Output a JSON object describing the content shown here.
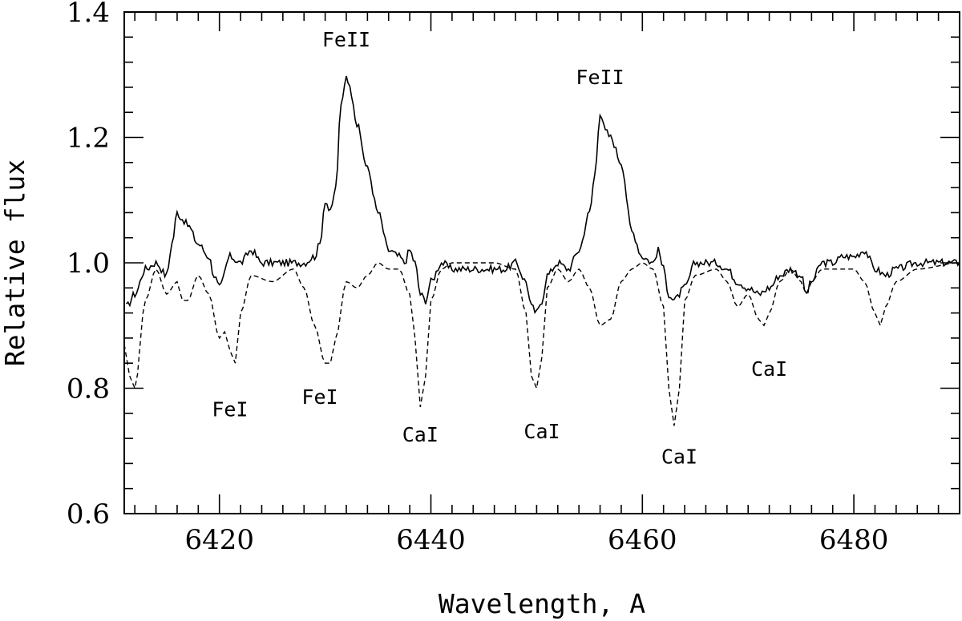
{
  "chart_data": {
    "type": "line",
    "title": "",
    "xlabel": "Wavelength, A",
    "ylabel": "Relative flux",
    "xlim": [
      6411,
      6490
    ],
    "ylim": [
      0.6,
      1.4
    ],
    "xticks_major": [
      6420,
      6440,
      6460,
      6480
    ],
    "xticks_minor_step": 2,
    "yticks_major": [
      0.6,
      0.8,
      1.0,
      1.2,
      1.4
    ],
    "yticks_labels": [
      "0.6",
      "0.8",
      "1.0",
      "1.2",
      "1.4"
    ],
    "yticks_minor_step": 0.04,
    "grid": false,
    "legend": false,
    "series": [
      {
        "style": "solid",
        "color": "#000000",
        "x": [
          6411.2,
          6412.0,
          6413.0,
          6414.0,
          6415.0,
          6415.5,
          6416.0,
          6416.5,
          6417.0,
          6418.0,
          6419.0,
          6419.5,
          6420.0,
          6421.0,
          6422.0,
          6423.0,
          6424.0,
          6426.0,
          6428.0,
          6429.0,
          6429.5,
          6430.0,
          6430.5,
          6431.0,
          6431.5,
          6432.0,
          6432.5,
          6433.0,
          6434.0,
          6435.0,
          6436.0,
          6437.0,
          6437.5,
          6438.0,
          6438.5,
          6439.0,
          6439.5,
          6440.0,
          6441.0,
          6442.0,
          6447.0,
          6448.0,
          6449.0,
          6449.5,
          6450.0,
          6450.5,
          6451.0,
          6452.0,
          6453.0,
          6454.0,
          6455.0,
          6455.5,
          6456.0,
          6456.5,
          6457.0,
          6458.0,
          6459.0,
          6460.0,
          6461.0,
          6461.5,
          6462.0,
          6462.5,
          6463.0,
          6464.0,
          6465.0,
          6467.0,
          6468.0,
          6469.0,
          6470.0,
          6471.0,
          6472.0,
          6473.0,
          6474.0,
          6475.0,
          6475.5,
          6476.0,
          6477.0,
          6478.0,
          6479.0,
          6480.0,
          6481.0,
          6482.0,
          6483.0,
          6484.0,
          6486.0,
          6488.0,
          6490.0
        ],
        "y": [
          0.93,
          0.95,
          0.99,
          1.0,
          0.98,
          1.03,
          1.08,
          1.07,
          1.06,
          1.03,
          1.01,
          0.98,
          0.96,
          1.01,
          1.0,
          1.02,
          1.0,
          1.0,
          1.0,
          1.01,
          1.03,
          1.1,
          1.08,
          1.12,
          1.25,
          1.3,
          1.27,
          1.22,
          1.15,
          1.08,
          1.02,
          1.01,
          1.0,
          1.02,
          1.0,
          0.95,
          0.94,
          0.97,
          1.0,
          0.99,
          0.99,
          1.0,
          0.97,
          0.93,
          0.92,
          0.94,
          0.98,
          1.0,
          0.99,
          1.02,
          1.08,
          1.14,
          1.24,
          1.21,
          1.2,
          1.16,
          1.05,
          1.01,
          1.0,
          1.02,
          0.99,
          0.95,
          0.94,
          0.96,
          1.0,
          1.0,
          0.99,
          0.97,
          0.96,
          0.95,
          0.96,
          0.98,
          0.99,
          0.98,
          0.95,
          0.97,
          1.0,
          1.0,
          1.01,
          1.01,
          1.02,
          0.99,
          0.98,
          0.99,
          1.0,
          1.0,
          1.0
        ]
      },
      {
        "style": "dashed",
        "color": "#000000",
        "x": [
          6411.0,
          6411.5,
          6412.0,
          6413.0,
          6414.0,
          6415.0,
          6416.0,
          6416.5,
          6417.0,
          6418.0,
          6419.0,
          6420.0,
          6420.5,
          6421.0,
          6421.5,
          6422.0,
          6423.0,
          6425.0,
          6427.0,
          6428.0,
          6429.0,
          6430.0,
          6430.5,
          6431.0,
          6432.0,
          6433.0,
          6434.0,
          6435.0,
          6436.0,
          6437.0,
          6438.0,
          6438.5,
          6439.0,
          6439.5,
          6440.0,
          6441.0,
          6442.0,
          6446.0,
          6448.0,
          6449.0,
          6449.5,
          6450.0,
          6450.5,
          6451.0,
          6452.0,
          6453.0,
          6454.0,
          6455.0,
          6456.0,
          6457.0,
          6458.0,
          6459.0,
          6460.0,
          6461.0,
          6462.0,
          6462.5,
          6463.0,
          6463.5,
          6464.0,
          6465.0,
          6467.0,
          6468.0,
          6469.0,
          6470.0,
          6471.0,
          6471.5,
          6472.0,
          6473.0,
          6474.0,
          6475.0,
          6475.5,
          6476.0,
          6477.0,
          6480.0,
          6481.0,
          6482.0,
          6482.5,
          6483.0,
          6484.0,
          6486.0,
          6490.0
        ],
        "y": [
          0.87,
          0.82,
          0.8,
          0.94,
          0.99,
          0.95,
          0.97,
          0.94,
          0.94,
          0.98,
          0.95,
          0.88,
          0.89,
          0.86,
          0.84,
          0.92,
          0.98,
          0.97,
          0.99,
          0.96,
          0.9,
          0.84,
          0.84,
          0.88,
          0.97,
          0.96,
          0.98,
          1.0,
          0.99,
          0.99,
          0.95,
          0.88,
          0.77,
          0.82,
          0.94,
          0.99,
          1.0,
          1.0,
          0.99,
          0.92,
          0.82,
          0.8,
          0.85,
          0.96,
          0.99,
          0.97,
          0.99,
          0.96,
          0.9,
          0.91,
          0.97,
          0.99,
          1.0,
          0.99,
          0.93,
          0.8,
          0.74,
          0.8,
          0.94,
          0.98,
          0.99,
          0.97,
          0.93,
          0.95,
          0.91,
          0.9,
          0.92,
          0.97,
          0.99,
          0.97,
          0.95,
          0.97,
          0.99,
          0.99,
          0.97,
          0.92,
          0.9,
          0.93,
          0.97,
          0.99,
          1.0
        ]
      }
    ],
    "annotations": [
      {
        "text": "FeII",
        "x": 6432.0,
        "y": 1.345
      },
      {
        "text": "FeII",
        "x": 6456.0,
        "y": 1.285
      },
      {
        "text": "FeI",
        "x": 6421.0,
        "y": 0.755
      },
      {
        "text": "FeI",
        "x": 6429.5,
        "y": 0.775
      },
      {
        "text": "CaI",
        "x": 6439.0,
        "y": 0.715
      },
      {
        "text": "CaI",
        "x": 6450.5,
        "y": 0.72
      },
      {
        "text": "CaI",
        "x": 6463.5,
        "y": 0.68
      },
      {
        "text": "CaI",
        "x": 6472.0,
        "y": 0.82
      }
    ]
  }
}
